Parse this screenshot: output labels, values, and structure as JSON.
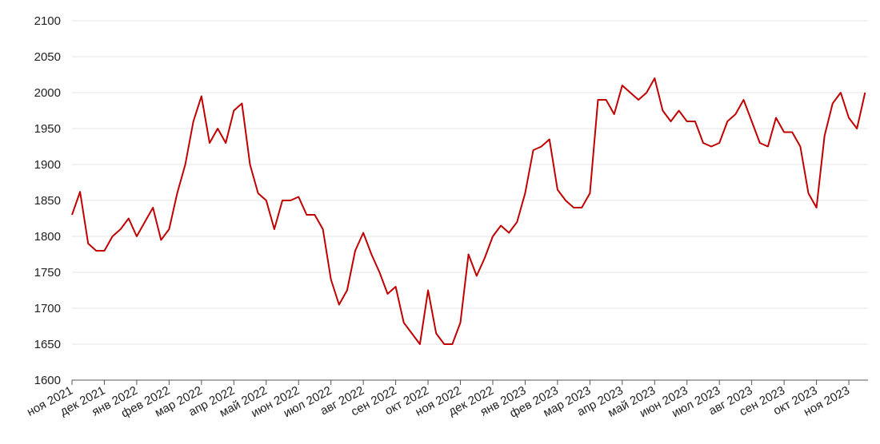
{
  "chart_data": {
    "type": "line",
    "categories": [
      "ноя 2021",
      null,
      null,
      null,
      "дек 2021",
      null,
      null,
      null,
      "янв 2022",
      null,
      null,
      null,
      "фев 2022",
      null,
      null,
      null,
      "мар 2022",
      null,
      null,
      null,
      "апр 2022",
      null,
      null,
      null,
      "май 2022",
      null,
      null,
      null,
      "июн 2022",
      null,
      null,
      null,
      "июл 2022",
      null,
      null,
      null,
      "авг 2022",
      null,
      null,
      null,
      "сен 2022",
      null,
      null,
      null,
      "окт 2022",
      null,
      null,
      null,
      "ноя 2022",
      null,
      null,
      null,
      "дек 2022",
      null,
      null,
      null,
      "янв 2023",
      null,
      null,
      null,
      "фев 2023",
      null,
      null,
      null,
      "мар 2023",
      null,
      null,
      null,
      "апр 2023",
      null,
      null,
      null,
      "май 2023",
      null,
      null,
      null,
      "июн 2023",
      null,
      null,
      null,
      "июл 2023",
      null,
      null,
      null,
      "авг 2023",
      null,
      null,
      null,
      "сен 2023",
      null,
      null,
      null,
      "окт 2023",
      null,
      null,
      null,
      "ноя 2023",
      null,
      null
    ],
    "series": [
      {
        "color": "#c00000",
        "values": [
          1830,
          1862,
          1790,
          1780,
          1780,
          1800,
          1810,
          1825,
          1800,
          1820,
          1840,
          1795,
          1810,
          1860,
          1900,
          1960,
          1995,
          1930,
          1950,
          1930,
          1975,
          1985,
          1900,
          1860,
          1850,
          1810,
          1850,
          1850,
          1855,
          1830,
          1830,
          1810,
          1740,
          1705,
          1725,
          1780,
          1805,
          1775,
          1750,
          1720,
          1730,
          1680,
          1665,
          1650,
          1725,
          1665,
          1650,
          1650,
          1680,
          1775,
          1745,
          1770,
          1800,
          1815,
          1805,
          1820,
          1860,
          1920,
          1925,
          1935,
          1865,
          1850,
          1840,
          1840,
          1860,
          1990,
          1990,
          1970,
          2010,
          2000,
          1990,
          2000,
          2020,
          1975,
          1960,
          1975,
          1960,
          1960,
          1930,
          1925,
          1930,
          1960,
          1970,
          1990,
          1960,
          1930,
          1925,
          1965,
          1945,
          1945,
          1925,
          1860,
          1840,
          1940,
          1985,
          2000,
          1965,
          1950,
          2000
        ]
      }
    ],
    "ylim": [
      1600,
      2100
    ],
    "yticks": [
      1600,
      1650,
      1700,
      1750,
      1800,
      1850,
      1900,
      1950,
      2000,
      2050,
      2100
    ],
    "grid": true
  }
}
